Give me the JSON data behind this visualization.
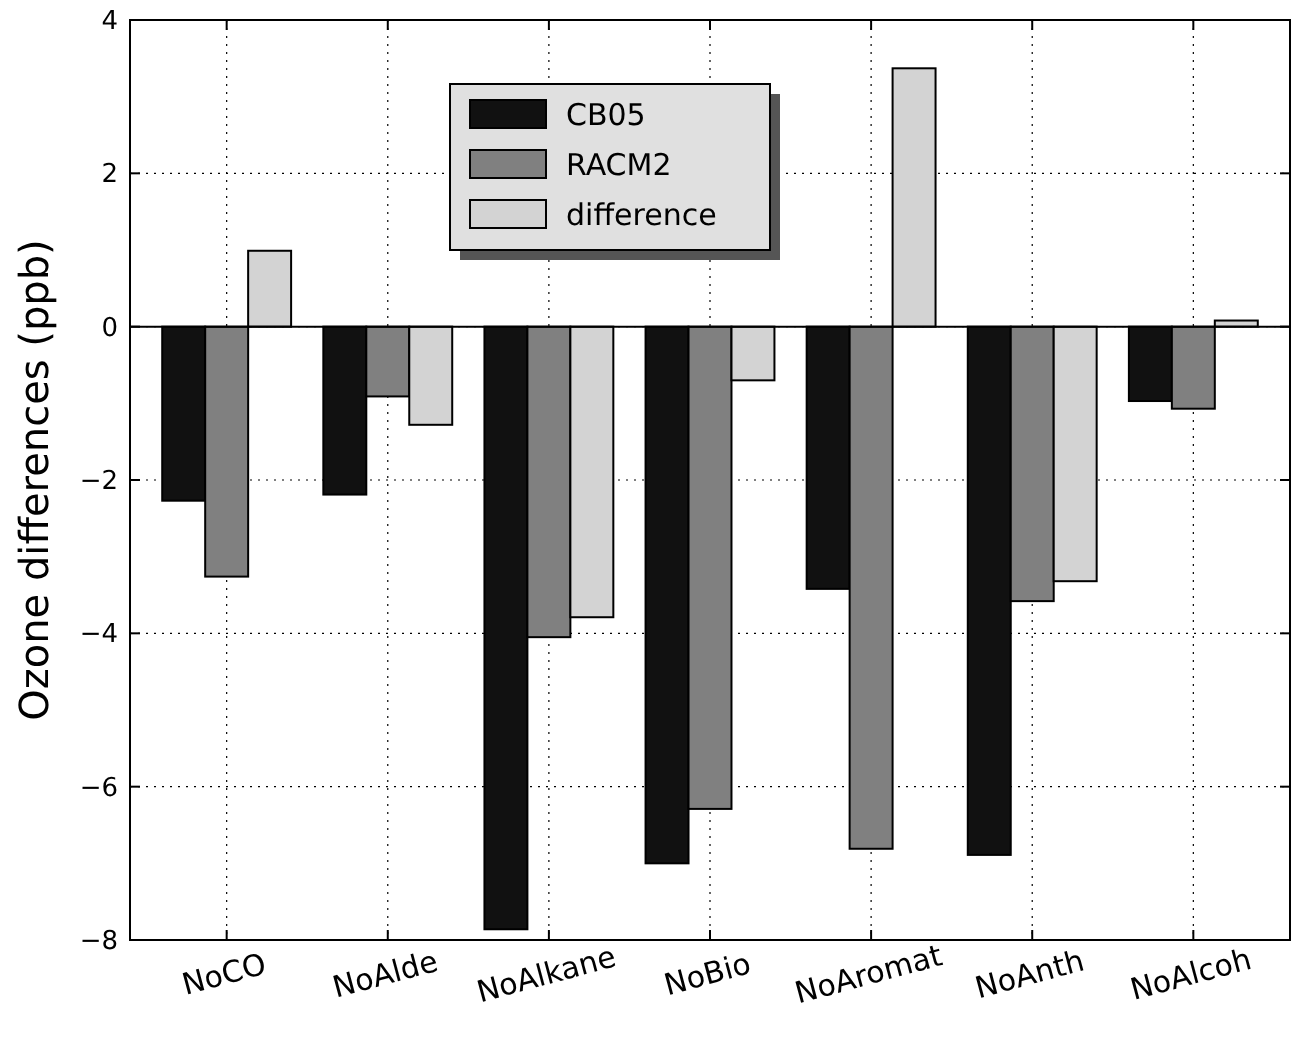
{
  "chart_data": {
    "type": "bar",
    "ylabel": "Ozone differences (ppb)",
    "categories": [
      "NoCO",
      "NoAlde",
      "NoAlkane",
      "NoBio",
      "NoAromat",
      "NoAnth",
      "NoAlcoh"
    ],
    "series": [
      {
        "name": "CB05",
        "color": "#111111",
        "values": [
          -2.27,
          -2.19,
          -7.86,
          -7.0,
          -3.42,
          -6.89,
          -0.97
        ]
      },
      {
        "name": "RACM2",
        "color": "#808080",
        "values": [
          -3.26,
          -0.91,
          -4.05,
          -6.29,
          -6.81,
          -3.58,
          -1.07
        ]
      },
      {
        "name": "difference",
        "color": "#d3d3d3",
        "values": [
          0.99,
          -1.28,
          -3.79,
          -0.7,
          3.37,
          -3.32,
          0.08
        ]
      }
    ],
    "ylim": [
      -8,
      4
    ],
    "yticks": [
      -8,
      -6,
      -4,
      -2,
      0,
      2,
      4
    ],
    "grid": true,
    "legend": "top",
    "ref_lines": [
      {
        "axis": "y",
        "value": 0
      }
    ]
  }
}
